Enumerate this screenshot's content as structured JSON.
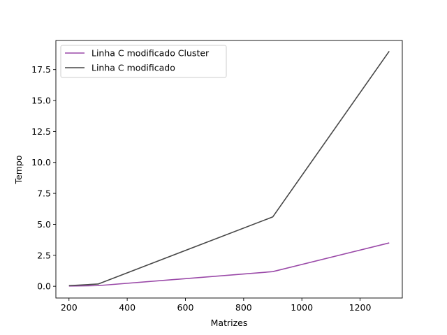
{
  "chart_data": {
    "type": "line",
    "title": "",
    "xlabel": "Matrizes",
    "ylabel": "Tempo",
    "xlim": [
      155,
      1345
    ],
    "ylim": [
      -0.95,
      19.85
    ],
    "xticks": [
      200,
      400,
      600,
      800,
      1000,
      1200
    ],
    "xtick_labels": [
      "200",
      "400",
      "600",
      "800",
      "1000",
      "1200"
    ],
    "yticks": [
      0.0,
      2.5,
      5.0,
      7.5,
      10.0,
      12.5,
      15.0,
      17.5
    ],
    "ytick_labels": [
      "0.0",
      "2.5",
      "5.0",
      "7.5",
      "10.0",
      "12.5",
      "15.0",
      "17.5"
    ],
    "grid": false,
    "legend_position": "upper-left",
    "series": [
      {
        "name": "Linha C modificado Cluster",
        "color": "#9A49A8",
        "x": [
          200,
          300,
          900,
          1300
        ],
        "y": [
          0.02,
          0.05,
          1.18,
          3.5
        ]
      },
      {
        "name": "Linha C modificado",
        "color": "#474747",
        "x": [
          200,
          300,
          900,
          1300
        ],
        "y": [
          0.05,
          0.18,
          5.6,
          18.98
        ]
      }
    ]
  }
}
